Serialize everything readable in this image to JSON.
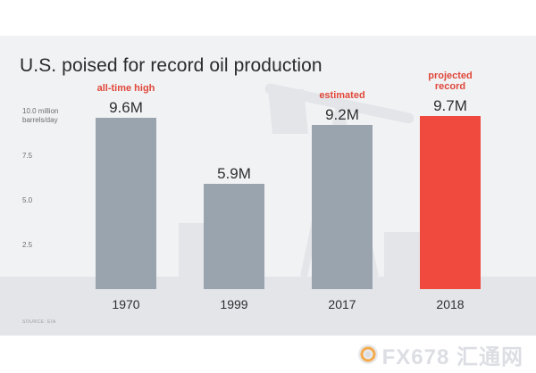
{
  "chart_data": {
    "type": "bar",
    "title": "U.S. poised for record oil production",
    "categories": [
      "1970",
      "1999",
      "2017",
      "2018"
    ],
    "values": [
      9.6,
      5.9,
      9.2,
      9.7
    ],
    "value_labels": [
      "9.6M",
      "5.9M",
      "9.2M",
      "9.7M"
    ],
    "annotations": [
      [
        "all-time high"
      ],
      [],
      [
        "estimated"
      ],
      [
        "projected",
        "record"
      ]
    ],
    "highlight_index": 3,
    "y_unit_label": [
      "10.0 million",
      "barrels/day"
    ],
    "y_ticks": [
      2.5,
      5.0,
      7.5,
      10.0
    ],
    "y_tick_labels": [
      "2.5",
      "5.0",
      "7.5",
      ""
    ],
    "ylim": [
      0,
      10
    ],
    "grid": false,
    "colors": {
      "bar": "#9aa4af",
      "highlight": "#f04a3f",
      "annotation": "#e0473a",
      "background": "#f1f2f4"
    }
  },
  "source": "SOURCE: EIA",
  "watermark": "FX678 汇通网"
}
